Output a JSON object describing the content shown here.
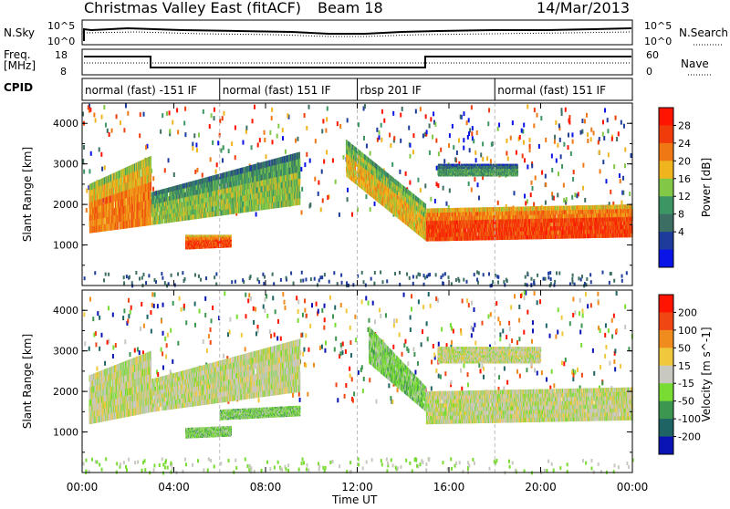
{
  "header": {
    "station": "Christmas Valley East (fitACF)",
    "beam": "Beam 18",
    "date": "14/Mar/2013"
  },
  "top_panels": {
    "nsky_label": "N.Sky",
    "nsky_ticks": [
      "10^5",
      "10^0"
    ],
    "nsearch_label": "N.Search",
    "freq_label_1": "Freq.",
    "freq_label_2": "[MHz]",
    "freq_ticks": [
      "18",
      "8"
    ],
    "nave_ticks": [
      "60",
      "0"
    ],
    "nave_label": "Nave",
    "cpid_label": "CPID",
    "cpid_segments": [
      {
        "label": "normal (fast) -151 IF",
        "start": 0,
        "end": 6
      },
      {
        "label": "normal (fast) 151 IF",
        "start": 6,
        "end": 12
      },
      {
        "label": "rbsp 201 IF",
        "start": 12,
        "end": 18
      },
      {
        "label": "normal (fast) 151 IF",
        "start": 18,
        "end": 24
      }
    ]
  },
  "x_axis": {
    "label": "Time UT",
    "ticks": [
      "00:00",
      "04:00",
      "08:00",
      "12:00",
      "16:00",
      "20:00",
      "00:00"
    ]
  },
  "chart_data": [
    {
      "type": "heatmap",
      "panel": "power",
      "ylabel": "Slant Range [km]",
      "xlim": [
        0,
        24
      ],
      "ylim": [
        0,
        4500
      ],
      "yticks": [
        "1000",
        "2000",
        "3000",
        "4000"
      ],
      "colorbar_label": "Power [dB]",
      "colorbar_ticks": [
        "28",
        "24",
        "20",
        "16",
        "12",
        "8",
        "4"
      ],
      "colors": [
        "#0a14e6",
        "#1e3c9c",
        "#3c6e64",
        "#3c9664",
        "#82c846",
        "#f0b41e",
        "#f07814",
        "#f03c0a",
        "#ff1400"
      ],
      "bands": [
        {
          "t0": 0.3,
          "t1": 3.0,
          "r0": 1300,
          "r1": 2500,
          "r0e": 1500,
          "r1e": 3200,
          "level": 6
        },
        {
          "t0": 3.0,
          "t1": 9.5,
          "r0": 1500,
          "r1": 2300,
          "r0e": 2000,
          "r1e": 3300,
          "level": 4
        },
        {
          "t0": 4.5,
          "t1": 6.5,
          "r0": 900,
          "r1": 1250,
          "r0e": 950,
          "r1e": 1250,
          "level": 7
        },
        {
          "t0": 11.5,
          "t1": 15.0,
          "r0": 2700,
          "r1": 3600,
          "r0e": 1100,
          "r1e": 2000,
          "level": 5
        },
        {
          "t0": 15.0,
          "t1": 24.0,
          "r0": 1100,
          "r1": 1900,
          "r0e": 1200,
          "r1e": 2000,
          "level": 7
        },
        {
          "t0": 15.5,
          "t1": 19.0,
          "r0": 2700,
          "r1": 3000,
          "r0e": 2700,
          "r1e": 3000,
          "level": 3
        }
      ]
    },
    {
      "type": "heatmap",
      "panel": "velocity",
      "ylabel": "Slant Range [km]",
      "xlim": [
        0,
        24
      ],
      "ylim": [
        0,
        4500
      ],
      "yticks": [
        "1000",
        "2000",
        "3000",
        "4000"
      ],
      "colorbar_label": "Velocity [m s^-1]",
      "colorbar_ticks": [
        "200",
        "100",
        "50",
        "15",
        "-15",
        "-50",
        "-100",
        "-200"
      ],
      "colors": [
        "#0a14b4",
        "#1e6464",
        "#3c9650",
        "#78dc32",
        "#c8c8c0",
        "#f0c83c",
        "#f08c1e",
        "#f04614",
        "#ff1400"
      ],
      "bands": [
        {
          "t0": 0.3,
          "t1": 3.0,
          "r0": 1200,
          "r1": 2400,
          "r0e": 1500,
          "r1e": 3000,
          "level": 4
        },
        {
          "t0": 3.0,
          "t1": 9.5,
          "r0": 1500,
          "r1": 2300,
          "r0e": 2000,
          "r1e": 3300,
          "level": 4
        },
        {
          "t0": 4.5,
          "t1": 6.5,
          "r0": 850,
          "r1": 1100,
          "r0e": 900,
          "r1e": 1150,
          "level": 3
        },
        {
          "t0": 6.0,
          "t1": 9.5,
          "r0": 1300,
          "r1": 1550,
          "r0e": 1400,
          "r1e": 1650,
          "level": 3
        },
        {
          "t0": 12.5,
          "t1": 15.0,
          "r0": 2700,
          "r1": 3600,
          "r0e": 1500,
          "r1e": 2100,
          "level": 3
        },
        {
          "t0": 15.0,
          "t1": 24.0,
          "r0": 1200,
          "r1": 2000,
          "r0e": 1300,
          "r1e": 2100,
          "level": 4
        },
        {
          "t0": 15.5,
          "t1": 20.0,
          "r0": 2700,
          "r1": 3100,
          "r0e": 2700,
          "r1e": 3100,
          "level": 4
        }
      ]
    }
  ]
}
